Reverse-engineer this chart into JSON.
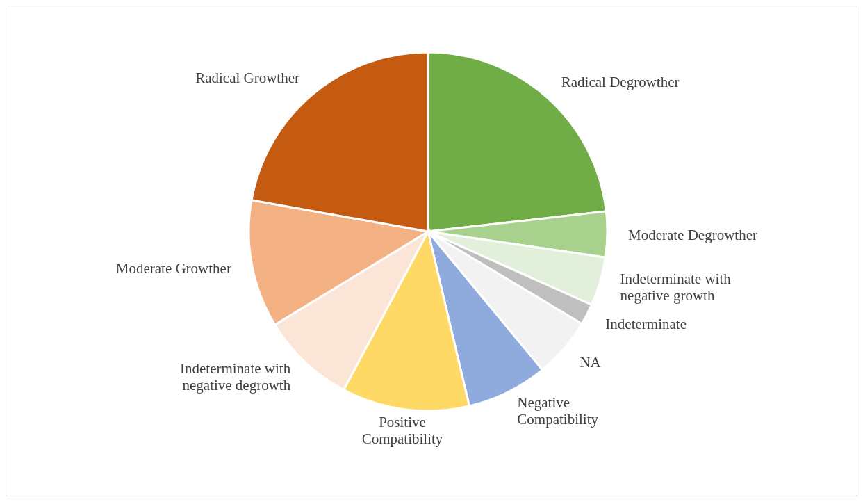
{
  "chart_data": {
    "type": "pie",
    "categories": [
      "Radical Degrowther",
      "Moderate Degrowther",
      "Indeterminate with negative growth",
      "Indeterminate",
      "NA",
      "Negative Compatibility",
      "Positive Compatibility",
      "Indeterminate with negative degrowth",
      "Moderate Growther",
      "Radical Growther"
    ],
    "values": [
      23.2,
      4.1,
      4.4,
      1.9,
      5.4,
      7.3,
      11.5,
      8.5,
      11.5,
      22.2
    ],
    "colors": [
      "#70ad47",
      "#a9d18e",
      "#e2efda",
      "#bfbfbf",
      "#f2f2f2",
      "#8faadc",
      "#ffd966",
      "#fbe5d6",
      "#f4b183",
      "#c55a11"
    ],
    "legend": false
  }
}
